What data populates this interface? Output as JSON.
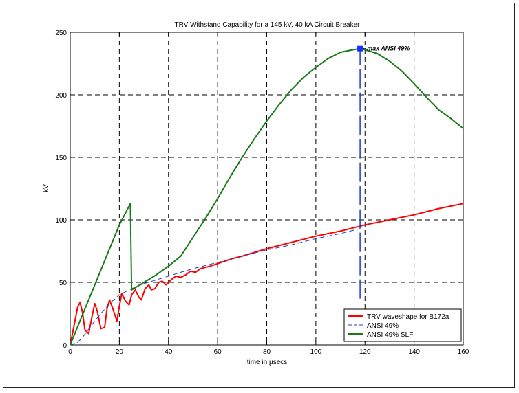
{
  "chart_data": {
    "type": "line",
    "title": "TRV Withstand Capability for a 145 kV, 40 kA Circuit Breaker",
    "xlabel": "time in µsecs",
    "ylabel": "kV",
    "xlim": [
      0,
      160
    ],
    "ylim": [
      0,
      250
    ],
    "xticks": [
      "0",
      "20",
      "40",
      "60",
      "80",
      "100",
      "120",
      "140",
      "160"
    ],
    "yticks": [
      "0",
      "50",
      "100",
      "150",
      "200",
      "250"
    ],
    "grid": true,
    "legend_position": "bottom-right",
    "annotation": {
      "text": "max ANSI 49%",
      "x": 118,
      "y": 237
    },
    "series": [
      {
        "name": "TRV waveshape for B172a",
        "color": "#ff0000",
        "style": "solid",
        "x": [
          0,
          1.5,
          3,
          4,
          5,
          6,
          7.5,
          9,
          10,
          11,
          12.5,
          14,
          15,
          16,
          17.5,
          19,
          20,
          21,
          22.5,
          24,
          25,
          26.5,
          28,
          29,
          30.5,
          32,
          33,
          34.5,
          36,
          37.5,
          39,
          41,
          43,
          45,
          47,
          49,
          51,
          53,
          55,
          57,
          60,
          63,
          66,
          70,
          75,
          80,
          90,
          100,
          110,
          120,
          130,
          140,
          150,
          160
        ],
        "values": [
          0,
          15,
          30,
          34,
          26,
          12,
          9,
          24,
          33,
          27,
          13,
          14,
          29,
          36,
          28,
          19,
          31,
          41,
          35,
          32,
          40,
          44,
          38,
          36,
          45,
          48,
          44,
          45,
          50,
          51,
          48,
          52,
          55,
          54,
          56,
          59,
          58,
          61,
          62,
          63,
          65,
          67,
          69,
          71,
          74,
          77,
          82,
          87,
          91,
          96,
          100,
          104,
          109,
          113
        ]
      },
      {
        "name": "ANSI 49%",
        "color": "#1f3dbf",
        "style": "dashed",
        "x": [
          0,
          3,
          5,
          8,
          12,
          16,
          20,
          25,
          30,
          35,
          40,
          45,
          50,
          60,
          70,
          80,
          90,
          100,
          110,
          118
        ],
        "values": [
          0,
          2,
          6,
          14,
          24,
          33,
          40,
          45,
          49,
          52,
          55,
          58,
          61,
          66,
          71,
          76,
          80,
          85,
          89,
          93
        ],
        "peak_line": {
          "x": 118,
          "y_from": 37,
          "y_to": 237
        }
      },
      {
        "name": "ANSI 49% SLF",
        "color": "#1a7a1a",
        "style": "solid",
        "x": [
          0,
          5,
          10,
          15,
          20,
          24.5,
          24.8,
          25,
          30,
          35,
          40,
          45,
          50,
          55,
          60,
          65,
          70,
          75,
          80,
          85,
          90,
          95,
          100,
          105,
          110,
          115,
          118,
          120,
          125,
          130,
          135,
          140,
          145,
          150,
          155,
          160
        ],
        "values": [
          0,
          24,
          48,
          72,
          96,
          113,
          70,
          44,
          50,
          56,
          63,
          71,
          86,
          101,
          117,
          134,
          150,
          165,
          179,
          192,
          204,
          214,
          222,
          229,
          234,
          236,
          237,
          236,
          233,
          227,
          219,
          209,
          198,
          188,
          181,
          173
        ]
      }
    ]
  }
}
